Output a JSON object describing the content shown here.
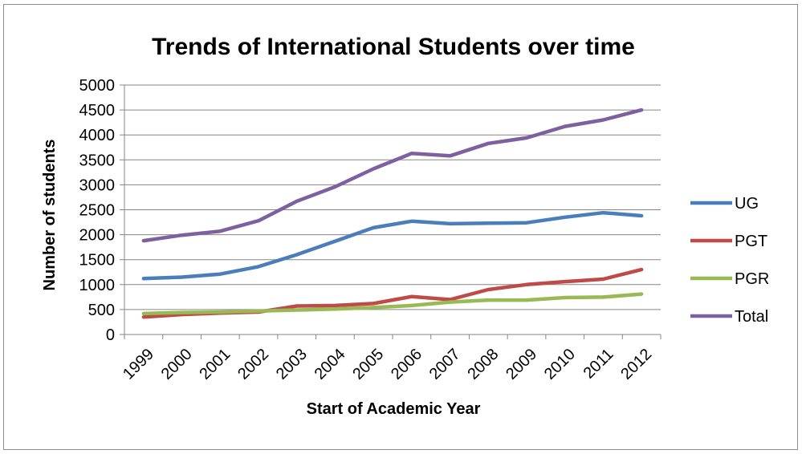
{
  "chart_data": {
    "type": "line",
    "title": "Trends of International Students over time",
    "xlabel": "Start of Academic Year",
    "ylabel": "Number of students",
    "categories": [
      "1999",
      "2000",
      "2001",
      "2002",
      "2003",
      "2004",
      "2005",
      "2006",
      "2007",
      "2008",
      "2009",
      "2010",
      "2011",
      "2012"
    ],
    "ylim": [
      0,
      5000
    ],
    "yticks": [
      0,
      500,
      1000,
      1500,
      2000,
      2500,
      3000,
      3500,
      4000,
      4500,
      5000
    ],
    "grid": true,
    "legend_position": "right",
    "series": [
      {
        "name": "UG",
        "color": "#4a7ebb",
        "values": [
          1120,
          1150,
          1210,
          1360,
          1600,
          1870,
          2140,
          2270,
          2220,
          2230,
          2240,
          2350,
          2440,
          2380
        ]
      },
      {
        "name": "PGT",
        "color": "#be4b48",
        "values": [
          350,
          400,
          430,
          450,
          570,
          580,
          620,
          760,
          700,
          900,
          1000,
          1060,
          1110,
          1300
        ]
      },
      {
        "name": "PGR",
        "color": "#98b954",
        "values": [
          420,
          440,
          450,
          470,
          490,
          510,
          540,
          580,
          650,
          690,
          690,
          740,
          750,
          810
        ]
      },
      {
        "name": "Total",
        "color": "#7d60a0",
        "values": [
          1880,
          1990,
          2070,
          2280,
          2670,
          2960,
          3320,
          3630,
          3580,
          3830,
          3940,
          4170,
          4300,
          4500
        ]
      }
    ]
  }
}
